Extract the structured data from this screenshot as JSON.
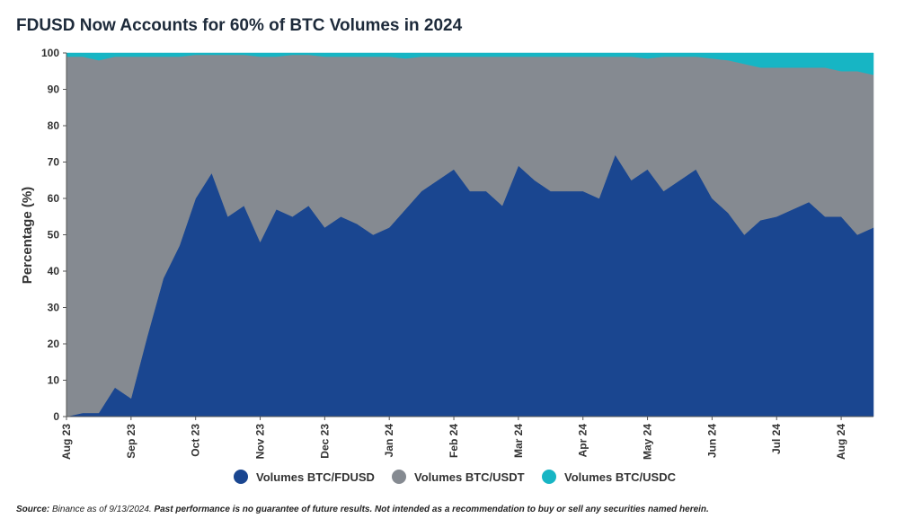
{
  "chart_data": {
    "type": "stacked_area",
    "title": "FDUSD Now Accounts for 60% of BTC Volumes in 2024",
    "ylabel": "Percentage (%)",
    "categories": [
      "Aug 23",
      null,
      null,
      null,
      "Sep 23",
      null,
      null,
      null,
      "Oct 23",
      null,
      null,
      null,
      "Nov 23",
      null,
      null,
      null,
      "Dec 23",
      null,
      null,
      null,
      "Jan 24",
      null,
      null,
      null,
      "Feb 24",
      null,
      null,
      null,
      "Mar 24",
      null,
      null,
      null,
      "Apr 24",
      null,
      null,
      null,
      "May 24",
      null,
      null,
      null,
      "Jun 24",
      null,
      null,
      null,
      "Jul 24",
      null,
      null,
      null,
      "Aug 24",
      null,
      null
    ],
    "series": [
      {
        "name": "Volumes BTC/FDUSD",
        "color": "#1a4690",
        "values": [
          0,
          1,
          1,
          8,
          5,
          22,
          38,
          47,
          60,
          67,
          55,
          58,
          48,
          57,
          55,
          58,
          52,
          55,
          53,
          50,
          52,
          57,
          62,
          65,
          68,
          62,
          62,
          58,
          69,
          65,
          62,
          62,
          62,
          60,
          72,
          65,
          68,
          62,
          65,
          68,
          60,
          56,
          50,
          54,
          55,
          57,
          59,
          55,
          55,
          50,
          52
        ]
      },
      {
        "name": "Volumes BTC/USDT",
        "color": "#858a91",
        "values": [
          99,
          98,
          97,
          91,
          94,
          77,
          61,
          52,
          39.5,
          32.5,
          44.5,
          41.5,
          51,
          42,
          44.5,
          41.5,
          47,
          44,
          46,
          49,
          47,
          41.5,
          37,
          34,
          31,
          37,
          37,
          41,
          30,
          34,
          37,
          37,
          37,
          39,
          27,
          34,
          30.5,
          37,
          34,
          31,
          38.5,
          42,
          47,
          42,
          41,
          39,
          37,
          41,
          40,
          45,
          42
        ]
      },
      {
        "name": "Volumes BTC/USDC",
        "color": "#17b5c4",
        "values": [
          1,
          1,
          2,
          1,
          1,
          1,
          1,
          1,
          0.5,
          0.5,
          0.5,
          0.5,
          1,
          1,
          0.5,
          0.5,
          1,
          1,
          1,
          1,
          1,
          1.5,
          1,
          1,
          1,
          1,
          1,
          1,
          1,
          1,
          1,
          1,
          1,
          1,
          1,
          1,
          1.5,
          1,
          1,
          1,
          1.5,
          2,
          3,
          4,
          4,
          4,
          4,
          4,
          5,
          5,
          6
        ]
      }
    ],
    "ylim": [
      0,
      100
    ],
    "yticks": [
      0,
      10,
      20,
      30,
      40,
      50,
      60,
      70,
      80,
      90,
      100
    ],
    "source_label": "Source:",
    "source": "Binance as of 9/13/2024.",
    "disclaimer": "Past performance is no guarantee of future results. Not intended as a recommendation to buy or sell any securities named herein."
  }
}
